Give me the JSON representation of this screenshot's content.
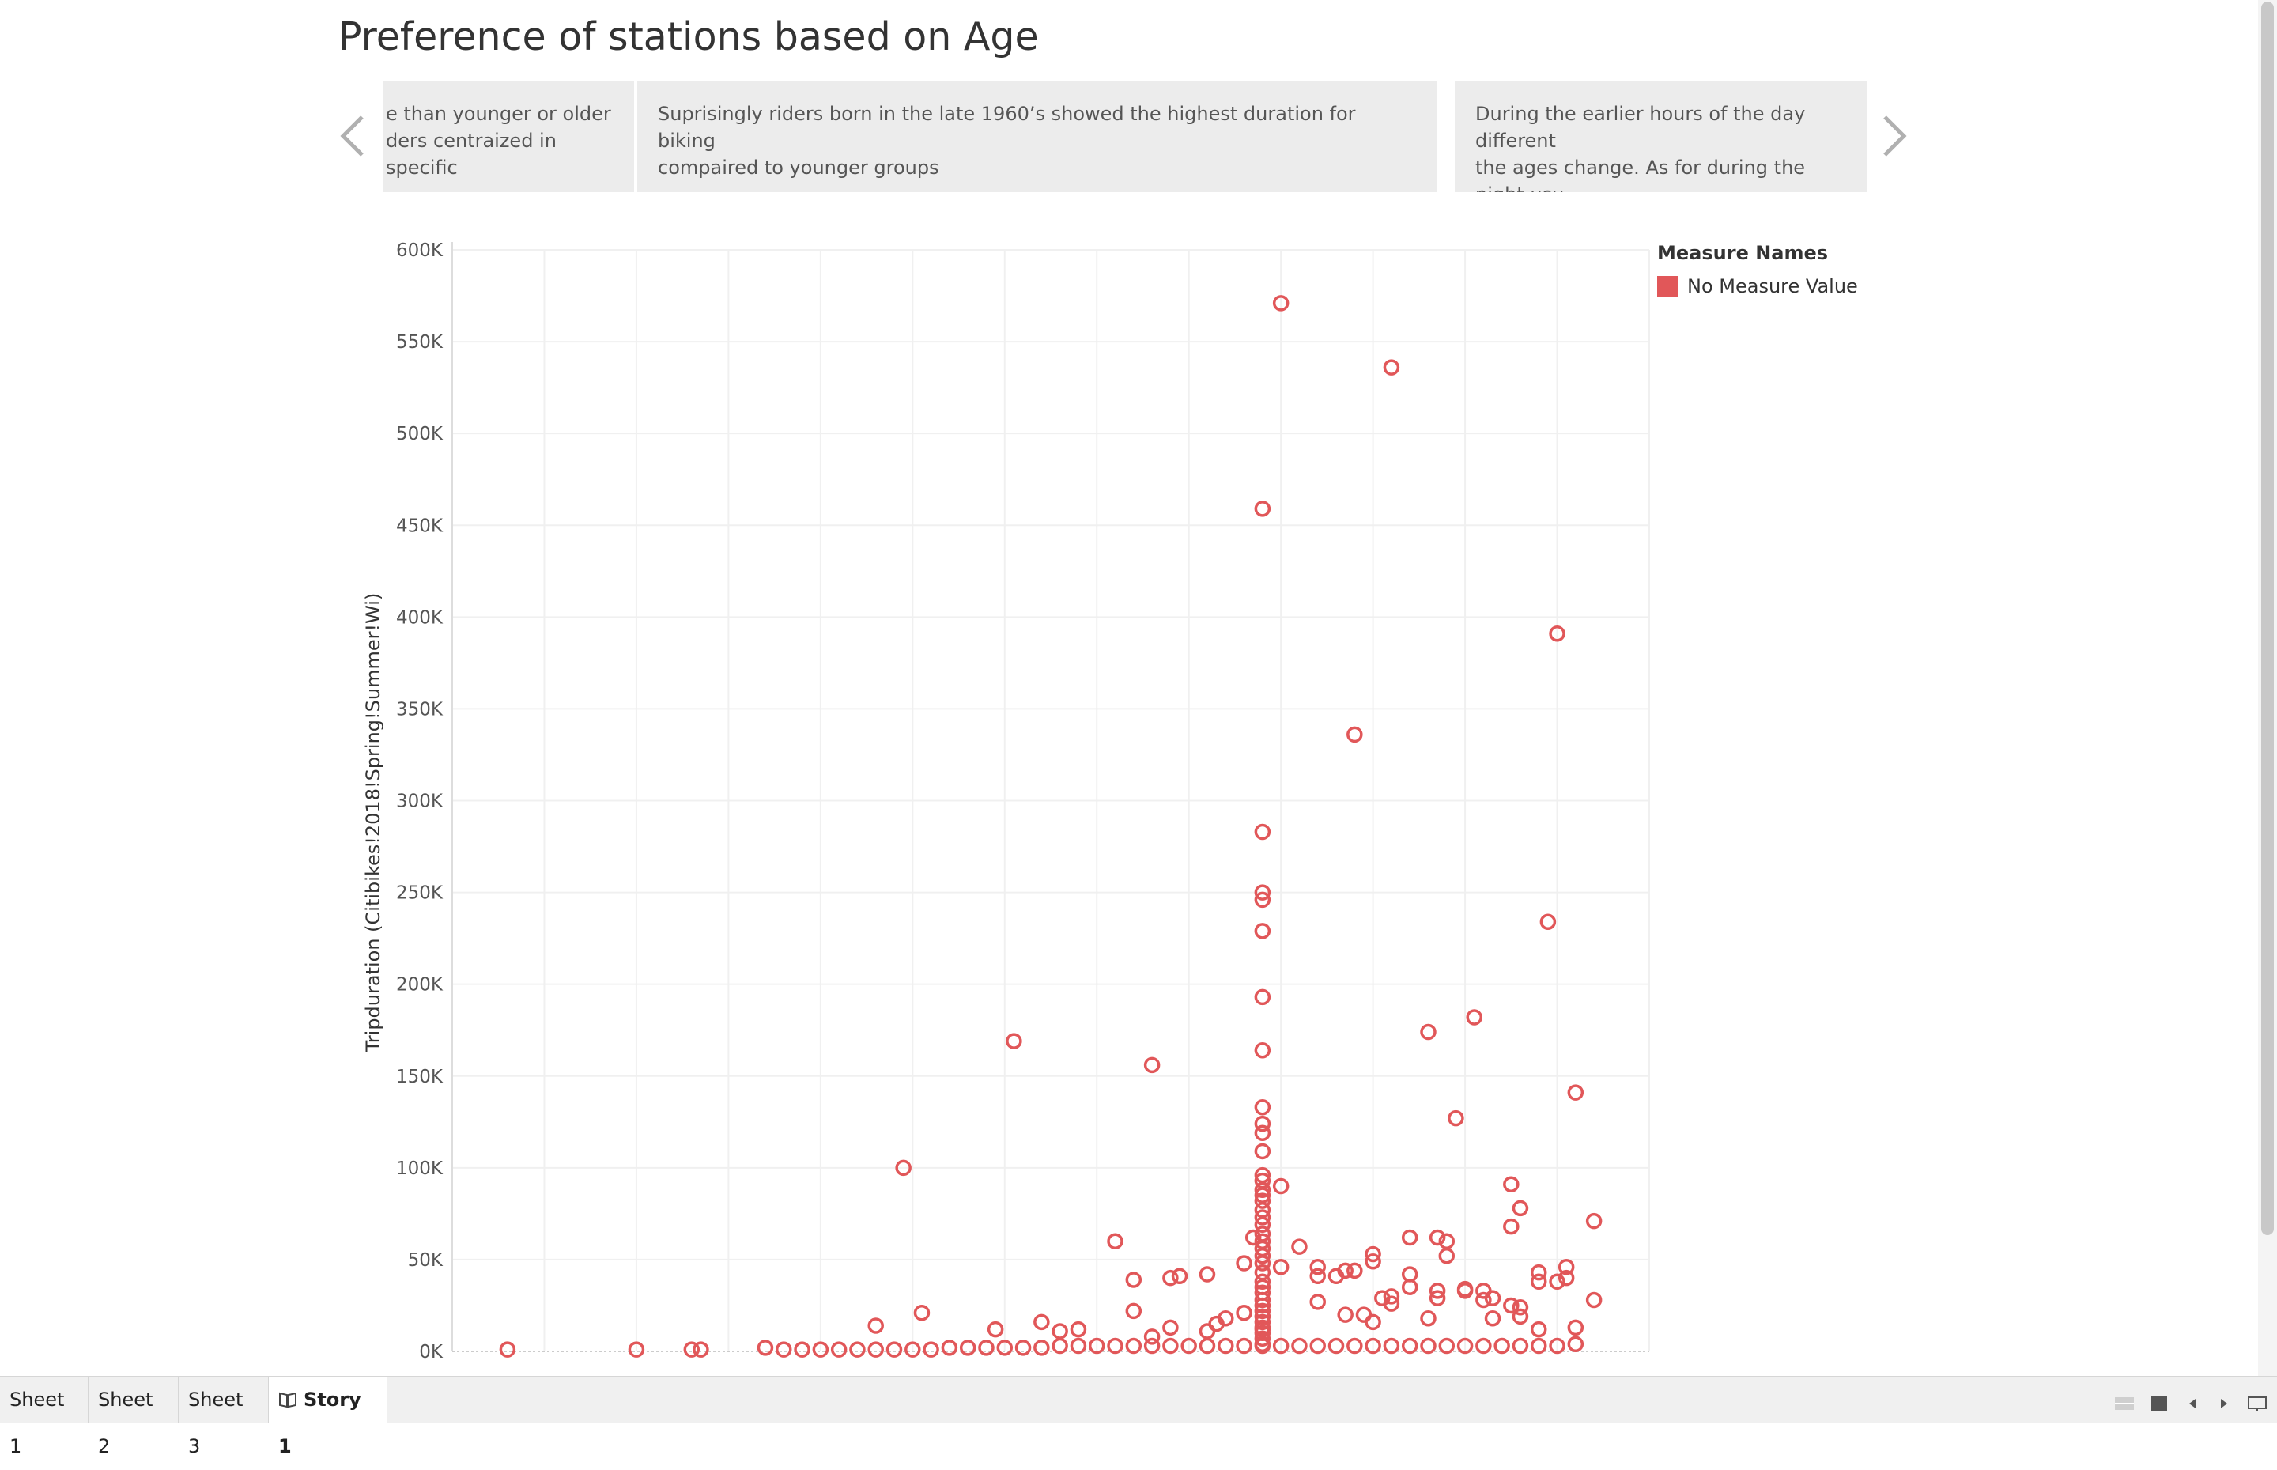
{
  "story": {
    "title": "Preference of stations based on Age",
    "captions": [
      {
        "text": "e than younger or older\nders centraized in specific"
      },
      {
        "text": "Suprisingly riders born in the late 1960’s showed the highest duration for biking\ncompaired to  younger groups"
      },
      {
        "text": "During the earlier hours of the day different\nthe ages change. As for during the night usu\ntheir bikes."
      }
    ]
  },
  "legend": {
    "title": "Measure Names",
    "items": [
      {
        "label": "No Measure Value",
        "color": "#e15759"
      }
    ]
  },
  "tabs": [
    {
      "label": "Sheet 1",
      "active": false
    },
    {
      "label": "Sheet 2",
      "active": false
    },
    {
      "label": "Sheet 3",
      "active": false
    },
    {
      "label": "Story 1",
      "active": true,
      "icon": "book-icon"
    }
  ],
  "chart_data": {
    "type": "scatter",
    "title": "",
    "xlabel": "",
    "ylabel": "Tripduration (Citibikes!2018!Spring!Summer!Wi)",
    "ylim": [
      0,
      600000
    ],
    "y_ticks": [
      "0K",
      "50K",
      "100K",
      "150K",
      "200K",
      "250K",
      "300K",
      "350K",
      "400K",
      "450K",
      "500K",
      "550K",
      "600K"
    ],
    "grid": true,
    "legend_position": "top-right",
    "marker": "open-circle",
    "color": "#e15759",
    "series": [
      {
        "name": "No Measure Value",
        "points": [
          [
            1886,
            1000
          ],
          [
            1900,
            1000
          ],
          [
            1906,
            1000
          ],
          [
            1907,
            1000
          ],
          [
            1914,
            2000
          ],
          [
            1916,
            1000
          ],
          [
            1918,
            1000
          ],
          [
            1920,
            1000
          ],
          [
            1922,
            1000
          ],
          [
            1924,
            1000
          ],
          [
            1926,
            1000
          ],
          [
            1928,
            1000
          ],
          [
            1930,
            1000
          ],
          [
            1932,
            1000
          ],
          [
            1934,
            2000
          ],
          [
            1936,
            2000
          ],
          [
            1938,
            2000
          ],
          [
            1940,
            2000
          ],
          [
            1942,
            2000
          ],
          [
            1944,
            2000
          ],
          [
            1946,
            3000
          ],
          [
            1948,
            3000
          ],
          [
            1950,
            3000
          ],
          [
            1952,
            3000
          ],
          [
            1954,
            3000
          ],
          [
            1956,
            3000
          ],
          [
            1958,
            3000
          ],
          [
            1960,
            3000
          ],
          [
            1962,
            3000
          ],
          [
            1964,
            3000
          ],
          [
            1966,
            3000
          ],
          [
            1968,
            3000
          ],
          [
            1970,
            3000
          ],
          [
            1972,
            3000
          ],
          [
            1974,
            3000
          ],
          [
            1976,
            3000
          ],
          [
            1978,
            3000
          ],
          [
            1980,
            3000
          ],
          [
            1982,
            3000
          ],
          [
            1984,
            3000
          ],
          [
            1986,
            3000
          ],
          [
            1988,
            3000
          ],
          [
            1990,
            3000
          ],
          [
            1992,
            3000
          ],
          [
            1994,
            3000
          ],
          [
            1996,
            3000
          ],
          [
            1998,
            3000
          ],
          [
            2000,
            3000
          ],
          [
            2002,
            4000
          ],
          [
            1926,
            14000
          ],
          [
            1931,
            21000
          ],
          [
            1939,
            12000
          ],
          [
            1944,
            16000
          ],
          [
            1946,
            11000
          ],
          [
            1948,
            12000
          ],
          [
            1952,
            60000
          ],
          [
            1954,
            39000
          ],
          [
            1954,
            22000
          ],
          [
            1956,
            8000
          ],
          [
            1958,
            13000
          ],
          [
            1958,
            40000
          ],
          [
            1959,
            41000
          ],
          [
            1962,
            42000
          ],
          [
            1962,
            11000
          ],
          [
            1963,
            15000
          ],
          [
            1964,
            18000
          ],
          [
            1966,
            48000
          ],
          [
            1966,
            21000
          ],
          [
            1967,
            62000
          ],
          [
            1968,
            12000
          ],
          [
            1970,
            46000
          ],
          [
            1970,
            90000
          ],
          [
            1972,
            57000
          ],
          [
            1974,
            46000
          ],
          [
            1974,
            41000
          ],
          [
            1974,
            27000
          ],
          [
            1976,
            41000
          ],
          [
            1977,
            44000
          ],
          [
            1977,
            20000
          ],
          [
            1978,
            44000
          ],
          [
            1979,
            20000
          ],
          [
            1980,
            53000
          ],
          [
            1980,
            49000
          ],
          [
            1980,
            16000
          ],
          [
            1981,
            29000
          ],
          [
            1982,
            30000
          ],
          [
            1982,
            26000
          ],
          [
            1984,
            62000
          ],
          [
            1984,
            42000
          ],
          [
            1984,
            35000
          ],
          [
            1986,
            18000
          ],
          [
            1987,
            62000
          ],
          [
            1987,
            33000
          ],
          [
            1987,
            29000
          ],
          [
            1988,
            60000
          ],
          [
            1988,
            52000
          ],
          [
            1990,
            33000
          ],
          [
            1990,
            34000
          ],
          [
            1992,
            33000
          ],
          [
            1992,
            28000
          ],
          [
            1993,
            29000
          ],
          [
            1993,
            18000
          ],
          [
            1995,
            91000
          ],
          [
            1995,
            68000
          ],
          [
            1995,
            25000
          ],
          [
            1996,
            78000
          ],
          [
            1996,
            24000
          ],
          [
            1996,
            19000
          ],
          [
            1998,
            43000
          ],
          [
            1998,
            38000
          ],
          [
            1998,
            12000
          ],
          [
            2000,
            38000
          ],
          [
            2001,
            46000
          ],
          [
            2001,
            40000
          ],
          [
            2002,
            13000
          ],
          [
            2004,
            71000
          ],
          [
            2004,
            28000
          ],
          [
            1929,
            100000
          ],
          [
            1941,
            169000
          ],
          [
            1956,
            156000
          ],
          [
            1970,
            571000
          ],
          [
            1978,
            336000
          ],
          [
            1982,
            536000
          ],
          [
            1986,
            174000
          ],
          [
            1989,
            127000
          ],
          [
            1991,
            182000
          ],
          [
            1999,
            234000
          ],
          [
            2000,
            391000
          ],
          [
            2002,
            141000
          ],
          [
            1968,
            459000
          ],
          [
            1968,
            283000
          ],
          [
            1968,
            250000
          ],
          [
            1968,
            246000
          ],
          [
            1968,
            229000
          ],
          [
            1968,
            193000
          ],
          [
            1968,
            164000
          ],
          [
            1968,
            133000
          ],
          [
            1968,
            124000
          ],
          [
            1968,
            119000
          ],
          [
            1968,
            109000
          ],
          [
            1968,
            96000
          ],
          [
            1968,
            93000
          ],
          [
            1968,
            88000
          ],
          [
            1968,
            85000
          ],
          [
            1968,
            82000
          ],
          [
            1968,
            77000
          ],
          [
            1968,
            73000
          ],
          [
            1968,
            69000
          ],
          [
            1968,
            64000
          ],
          [
            1968,
            60000
          ],
          [
            1968,
            56000
          ],
          [
            1968,
            52000
          ],
          [
            1968,
            48000
          ],
          [
            1968,
            43000
          ],
          [
            1968,
            38000
          ],
          [
            1968,
            35000
          ],
          [
            1968,
            32000
          ],
          [
            1968,
            28000
          ],
          [
            1968,
            25000
          ],
          [
            1968,
            22000
          ],
          [
            1968,
            19000
          ],
          [
            1968,
            16000
          ],
          [
            1968,
            13000
          ],
          [
            1968,
            10000
          ],
          [
            1968,
            7000
          ],
          [
            1968,
            4000
          ]
        ]
      }
    ]
  }
}
